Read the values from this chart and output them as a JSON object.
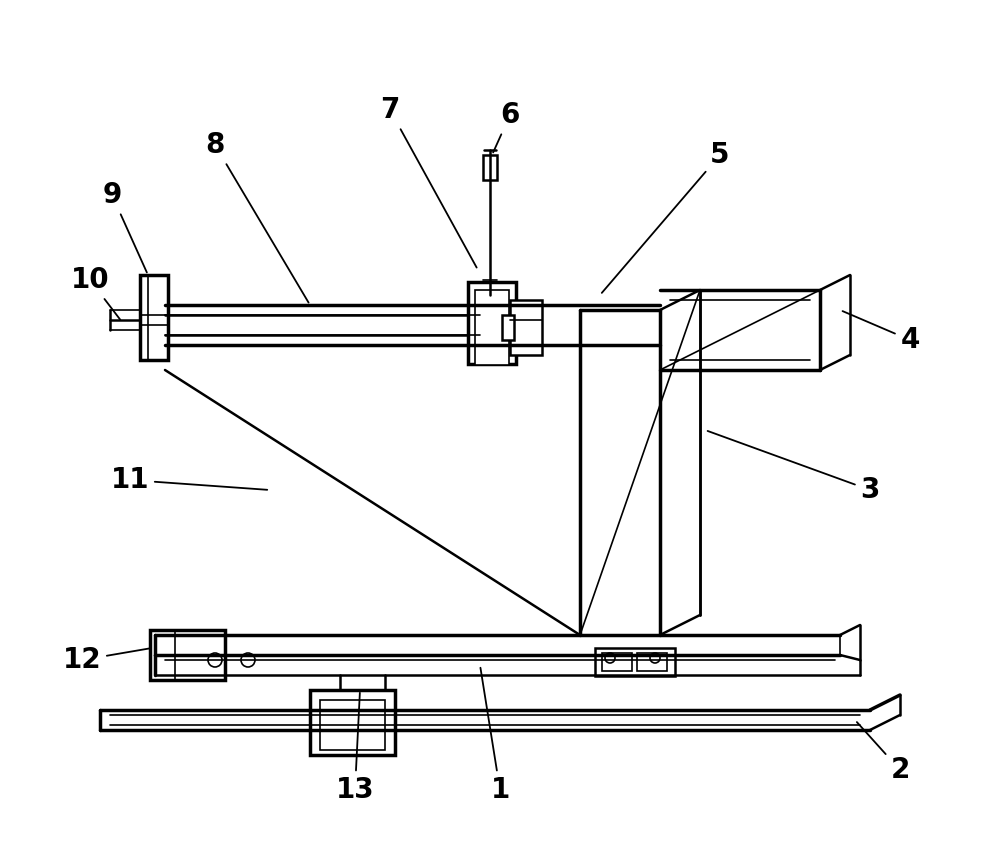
{
  "bg_color": "#ffffff",
  "line_color": "#000000",
  "lw_thin": 1.2,
  "lw_med": 1.8,
  "lw_thick": 2.5,
  "fig_width": 10.0,
  "fig_height": 8.61
}
